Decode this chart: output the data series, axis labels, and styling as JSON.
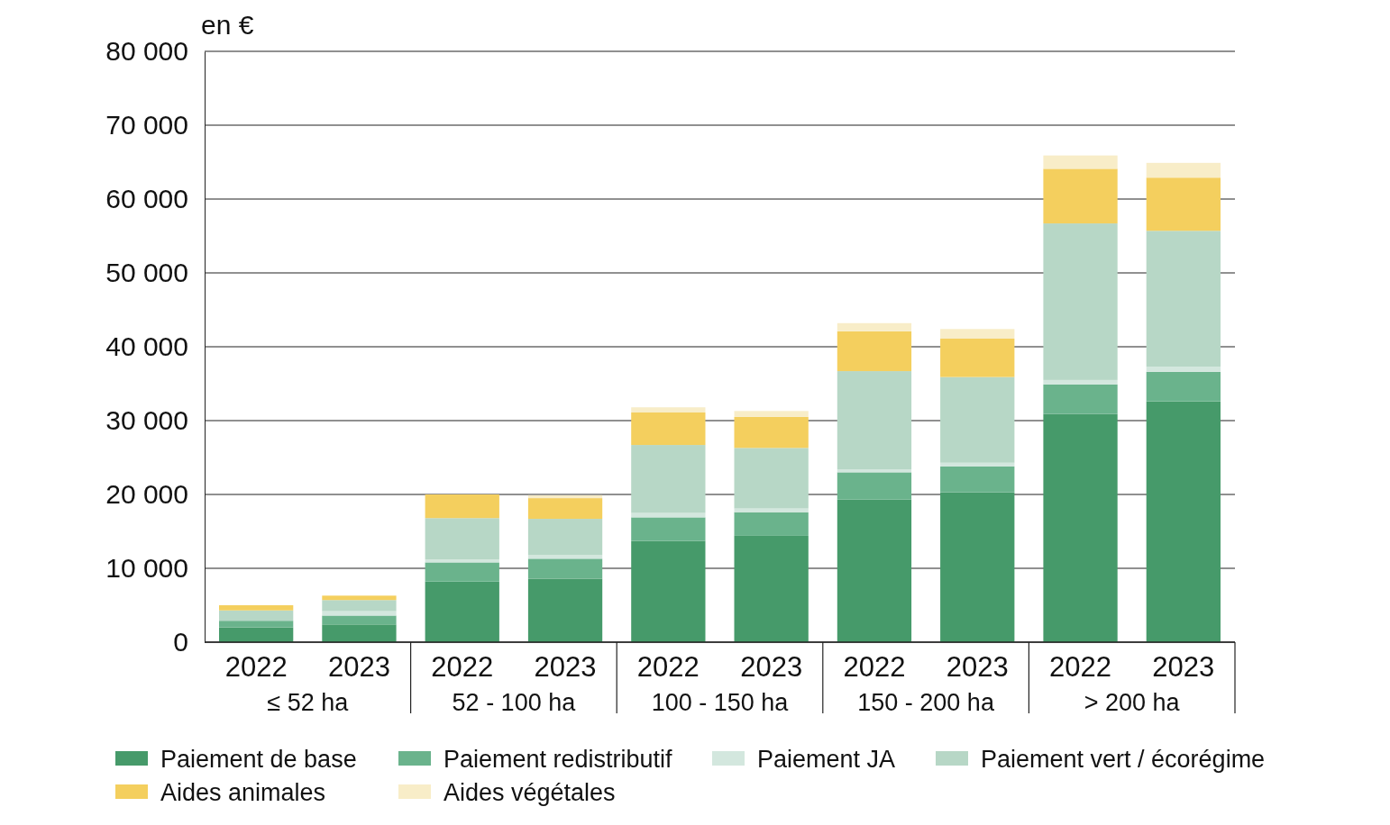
{
  "chart_data": {
    "type": "bar",
    "stacked": true,
    "ylabel": "en €",
    "categories": [
      "2022",
      "2023",
      "2022",
      "2023",
      "2022",
      "2023",
      "2022",
      "2023",
      "2022",
      "2023"
    ],
    "annotations": [
      "≤ 52 ha",
      "52 - 100 ha",
      "100 - 150 ha",
      "150 - 200 ha",
      "> 200 ha"
    ],
    "series": [
      {
        "name": "Paiement de base",
        "color": "#469a6a",
        "values": [
          2000,
          2400,
          8200,
          8600,
          13700,
          14400,
          19300,
          20300,
          30900,
          32600
        ]
      },
      {
        "name": "Paiement redistributif",
        "color": "#6ab38c",
        "values": [
          900,
          1200,
          2600,
          2700,
          3200,
          3200,
          3700,
          3500,
          4000,
          4000
        ]
      },
      {
        "name": "Paiement JA",
        "color": "#d3e7de",
        "values": [
          null,
          600,
          400,
          500,
          600,
          500,
          400,
          500,
          600,
          700
        ]
      },
      {
        "name": "Paiement vert / écorégime",
        "color": "#b7d7c6",
        "values": [
          1400,
          1500,
          5600,
          4900,
          9200,
          8200,
          13300,
          11600,
          21200,
          18400
        ]
      },
      {
        "name": "Aides animales",
        "color": "#f4cf5e",
        "values": [
          700,
          600,
          3200,
          2800,
          4400,
          4200,
          5400,
          5200,
          7400,
          7200
        ]
      },
      {
        "name": "Aides végétales",
        "color": "#f8edc8",
        "values": [
          null,
          null,
          null,
          400,
          700,
          800,
          1100,
          1300,
          1800,
          2000
        ]
      }
    ],
    "ylim": [
      0,
      80000
    ],
    "yticks": [
      0,
      {
        "value": 10000,
        "label": "10 000"
      },
      {
        "value": 20000,
        "label": "20 000"
      },
      {
        "value": 30000,
        "label": "30 000"
      },
      {
        "value": 40000,
        "label": "40 000"
      },
      {
        "value": 50000,
        "label": "50 000"
      },
      {
        "value": 60000,
        "label": "60 000"
      },
      {
        "value": 70000,
        "label": "70 000"
      },
      {
        "value": 80000,
        "label": "80 000"
      }
    ],
    "grid": "y",
    "legend": "bottom"
  }
}
